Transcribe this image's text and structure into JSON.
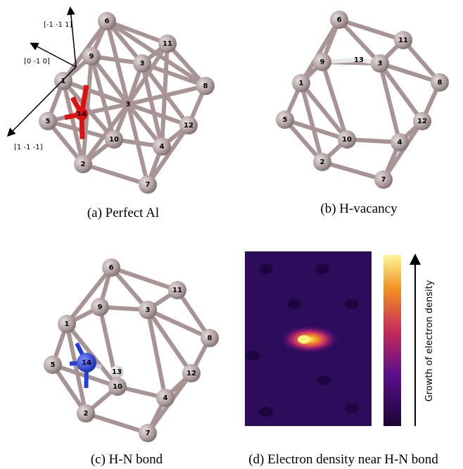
{
  "panels": [
    {
      "caption": "(a) Perfect Al",
      "atoms": [
        "6",
        "11",
        "9",
        "3",
        "1",
        "8",
        "5",
        "12",
        "10",
        "4",
        "2",
        "7",
        "3",
        "14"
      ],
      "directions": [
        "[-1 -1 1]",
        "[0 -1 0]",
        "[1 -1 -1]"
      ]
    },
    {
      "caption": "(b) H-vacancy",
      "atoms": [
        "6",
        "11",
        "9",
        "3",
        "1",
        "8",
        "5",
        "12",
        "10",
        "4",
        "2",
        "7",
        "13"
      ]
    },
    {
      "caption": "(c) H-N bond",
      "atoms": [
        "6",
        "11",
        "9",
        "3",
        "1",
        "8",
        "5",
        "12",
        "10",
        "4",
        "2",
        "7",
        "13",
        "14"
      ]
    },
    {
      "caption": "(d) Electron density near H-N bond",
      "colorbar_label": "Growth of electron density"
    }
  ]
}
